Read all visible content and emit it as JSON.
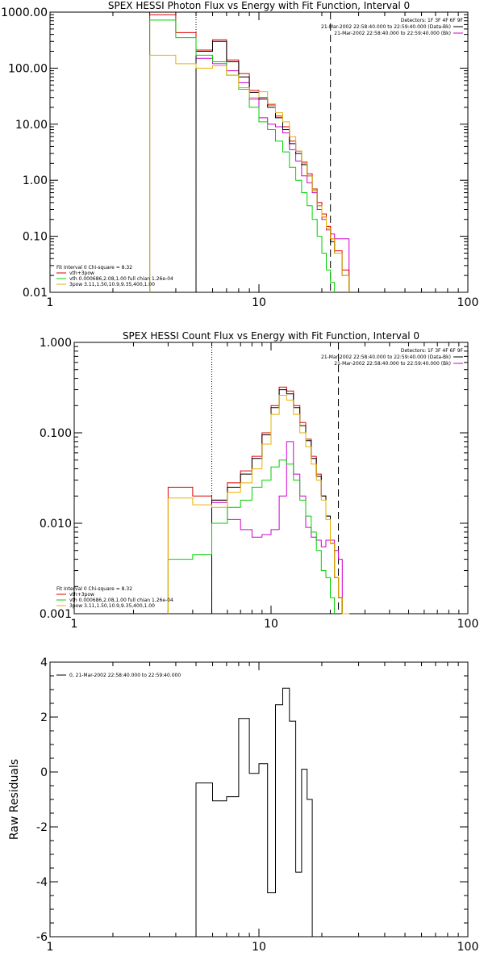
{
  "colors": {
    "black": "#000000",
    "red": "#e00000",
    "green": "#00d000",
    "yellow": "#e8b000",
    "magenta": "#d000d0"
  },
  "chart_data": [
    {
      "type": "line",
      "title": "SPEX HESSI Photon Flux vs Energy with Fit Function, Interval 0",
      "xlabel": "",
      "ylabel": "",
      "xscale": "log",
      "yscale": "log",
      "xlim": [
        1,
        100
      ],
      "ylim": [
        0.01,
        1000
      ],
      "xticks": [
        1,
        10,
        100
      ],
      "xtick_labels": [
        "1",
        "10",
        "100"
      ],
      "yticks": [
        0.01,
        0.1,
        1,
        10,
        100,
        1000
      ],
      "ytick_labels": [
        "0.01",
        "0.10",
        "1.00",
        "10.00",
        "100.00",
        "1000.00"
      ],
      "grid": false,
      "vlines": [
        {
          "x": 5,
          "style": "dotted"
        },
        {
          "x": 22,
          "style": "dashed"
        }
      ],
      "legend_top_right": [
        {
          "text": "Detectors: 1F 3F 4F 6F 9F"
        },
        {
          "text": "21-Mar-2002 22:58:40.000 to 22:59:40.000 (Data-Bk)",
          "color": "black"
        },
        {
          "text": "21-Mar-2002 22:58:40.000 to 22:59:40.000 (Bk)",
          "color": "magenta"
        }
      ],
      "legend_bottom_left": [
        {
          "text": "Fit Interval 0   Chi-square = 8.32"
        },
        {
          "text": "vth+3pow",
          "color": "red"
        },
        {
          "text": "vth 0.000686,2.08,1.00  full chian 1.26e-04",
          "color": "green"
        },
        {
          "text": "3pow 3.11,1.50,10.9,9.35,400,1.00",
          "color": "yellow"
        }
      ],
      "bin_edges": [
        3,
        4,
        5,
        6,
        7,
        8,
        9,
        10,
        11,
        12,
        13,
        14,
        15,
        16,
        17,
        18,
        19,
        20,
        21,
        22,
        23,
        25,
        27
      ],
      "series": [
        {
          "color": "magenta",
          "values": [
            null,
            null,
            150,
            120,
            90,
            55,
            28,
            13,
            10,
            9,
            7,
            3.5,
            2.2,
            1.2,
            0.9,
            0.6,
            0.3,
            0.2,
            0.13,
            0.11,
            0.09,
            0.09,
            null
          ]
        },
        {
          "color": "red",
          "values": [
            900,
            430,
            210,
            320,
            140,
            80,
            40,
            30,
            22,
            14,
            9,
            5,
            3.3,
            2.1,
            1.3,
            0.7,
            0.4,
            0.25,
            0.15,
            0.09,
            0.055,
            0.025,
            null
          ]
        },
        {
          "color": "black",
          "values": [
            null,
            null,
            200,
            300,
            130,
            70,
            37,
            28,
            20,
            13,
            8,
            4.5,
            3,
            1.9,
            1.2,
            0.65,
            0.35,
            0.22,
            0.14,
            0.08,
            0.05,
            0.02,
            null
          ]
        },
        {
          "color": "green",
          "values": [
            720,
            350,
            170,
            130,
            75,
            42,
            20,
            11,
            8,
            5,
            3.2,
            1.7,
            1.0,
            0.6,
            0.35,
            0.2,
            0.1,
            0.05,
            0.025,
            0.015,
            null,
            null,
            null
          ]
        },
        {
          "color": "yellow",
          "values": [
            170,
            120,
            100,
            110,
            75,
            45,
            30,
            38,
            23,
            16,
            11,
            6,
            3.3,
            2.0,
            1.2,
            0.65,
            0.35,
            0.22,
            0.14,
            0.09,
            0.05,
            0.02,
            null
          ]
        }
      ]
    },
    {
      "type": "line",
      "title": "SPEX HESSI Count Flux vs Energy with Fit Function, Interval 0",
      "xlabel": "",
      "ylabel": "",
      "xscale": "log",
      "yscale": "log",
      "xlim": [
        1,
        100
      ],
      "ylim": [
        0.001,
        1
      ],
      "xticks": [
        1,
        10,
        100
      ],
      "xtick_labels": [
        "1",
        "10",
        "100"
      ],
      "yticks": [
        0.001,
        0.01,
        0.1,
        1
      ],
      "ytick_labels": [
        "0.001",
        "0.010",
        "0.100",
        "1.000"
      ],
      "grid": false,
      "vlines": [
        {
          "x": 5,
          "style": "dotted"
        },
        {
          "x": 22,
          "style": "dashed"
        }
      ],
      "legend_top_right": [
        {
          "text": "Detectors: 1F 3F 4F 6F 9F"
        },
        {
          "text": "21-Mar-2002 22:58:40.000 to 22:59:40.000 (Data-Bk)",
          "color": "black"
        },
        {
          "text": "21-Mar-2002 22:58:40.000 to 22:59:40.000 (Bk)",
          "color": "magenta"
        }
      ],
      "legend_bottom_left": [
        {
          "text": "Fit Interval 0   Chi-square = 8.32"
        },
        {
          "text": "vth+3pow",
          "color": "red"
        },
        {
          "text": "vth 0.000686,2.08,1.00  full chian 1.26e-04",
          "color": "green"
        },
        {
          "text": "3pow 3.11,1.50,10.9,9.35,400,1.00",
          "color": "yellow"
        }
      ],
      "bin_edges": [
        3,
        4,
        5,
        6,
        7,
        8,
        9,
        10,
        11,
        12,
        13,
        14,
        15,
        16,
        17,
        18,
        19,
        20,
        21,
        22,
        23,
        25,
        27
      ],
      "series": [
        {
          "color": "magenta",
          "values": [
            null,
            null,
            0.017,
            0.011,
            0.0085,
            0.007,
            0.0075,
            0.0085,
            0.02,
            0.08,
            0.035,
            0.02,
            0.009,
            0.007,
            0.0065,
            0.0055,
            0.0065,
            0.0065,
            0.005,
            0.004,
            null,
            null,
            null
          ]
        },
        {
          "color": "red",
          "values": [
            0.025,
            0.02,
            0.018,
            0.028,
            0.038,
            0.055,
            0.1,
            0.2,
            0.32,
            0.29,
            0.2,
            0.13,
            0.085,
            0.055,
            0.035,
            0.02,
            0.012,
            0.006,
            0.0025,
            0.0015,
            0.001,
            null,
            null
          ]
        },
        {
          "color": "black",
          "values": [
            null,
            null,
            0.018,
            0.025,
            0.035,
            0.052,
            0.095,
            0.19,
            0.3,
            0.27,
            0.19,
            0.12,
            0.082,
            0.052,
            0.033,
            0.02,
            0.012,
            0.006,
            0.0025,
            0.0015,
            0.001,
            null,
            null
          ]
        },
        {
          "color": "green",
          "values": [
            0.004,
            0.0045,
            0.01,
            0.015,
            0.018,
            0.025,
            0.03,
            0.042,
            0.05,
            0.045,
            0.03,
            0.018,
            0.012,
            0.008,
            0.005,
            0.003,
            0.0025,
            0.0015,
            null,
            null,
            null,
            null,
            null
          ]
        },
        {
          "color": "yellow",
          "values": [
            0.019,
            0.016,
            0.015,
            0.022,
            0.028,
            0.04,
            0.075,
            0.16,
            0.26,
            0.23,
            0.16,
            0.1,
            0.07,
            0.045,
            0.03,
            0.018,
            0.011,
            0.006,
            0.0025,
            0.0015,
            0.001,
            null,
            null
          ]
        }
      ]
    },
    {
      "type": "line",
      "title": "",
      "xlabel": "",
      "ylabel": "Raw Residuals",
      "xscale": "log",
      "yscale": "linear",
      "xlim": [
        1,
        100
      ],
      "ylim": [
        -6,
        4
      ],
      "xticks": [
        1,
        10,
        100
      ],
      "xtick_labels": [
        "1",
        "10",
        "100"
      ],
      "yticks": [
        -6,
        -4,
        -2,
        0,
        2,
        4
      ],
      "ytick_labels": [
        "-6",
        "-4",
        "-2",
        "0",
        "2",
        "4"
      ],
      "grid": false,
      "legend_top_left": [
        {
          "text": "0, 21-Mar-2002 22:58:40.000 to 22:59:40.000",
          "color": "black"
        }
      ],
      "bin_edges": [
        5,
        6,
        7,
        8,
        9,
        10,
        11,
        12,
        13,
        14,
        15,
        16,
        17,
        18,
        19,
        20,
        21,
        22
      ],
      "series": [
        {
          "color": "black",
          "values": [
            -0.4,
            -1.05,
            -0.9,
            1.95,
            -0.05,
            0.3,
            -4.4,
            2.45,
            3.05,
            1.85,
            -3.65,
            0.1,
            -1.0,
            null,
            null,
            null,
            null
          ]
        }
      ]
    }
  ]
}
